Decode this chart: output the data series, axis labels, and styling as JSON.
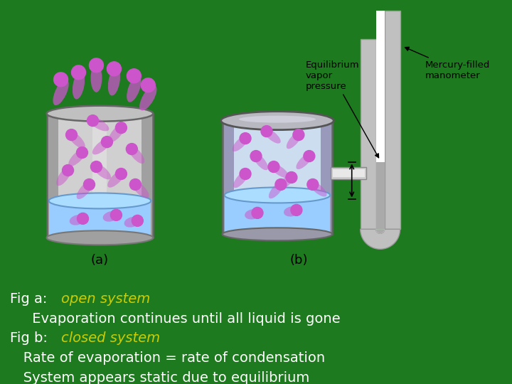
{
  "bg_color": "#1e7a1e",
  "white_text_color": "#ffffff",
  "yellow_text_color": "#cccc00",
  "text_fontsize": 14,
  "fig_a_prefix": "Fig a:  ",
  "fig_a_highlight": "open system",
  "fig_a_line2": "     Evaporation continues until all liquid is gone",
  "fig_b_prefix": "Fig b:  ",
  "fig_b_highlight": "closed system",
  "fig_b_line2": "   Rate of evaporation = rate of condensation",
  "fig_b_line3": "   System appears static due to equilibrium",
  "label_a": "(a)",
  "label_b": "(b)",
  "eq_vapor": "Equilibrium\nvapor\npressure",
  "mercury": "Mercury-filled\nmanometer",
  "mol_color": "#cc55cc",
  "mol_color2": "#aa44aa",
  "liq_color": "#99ccff",
  "liq_edge": "#6699cc",
  "liq_top": "#aaddff",
  "gray_body": "#d0d0d0",
  "gray_dark": "#a0a0a0",
  "gray_mid": "#c0c0c0",
  "blue_body": "#ccddef",
  "tube_color": "#cccccc",
  "tube_edge": "#888888"
}
